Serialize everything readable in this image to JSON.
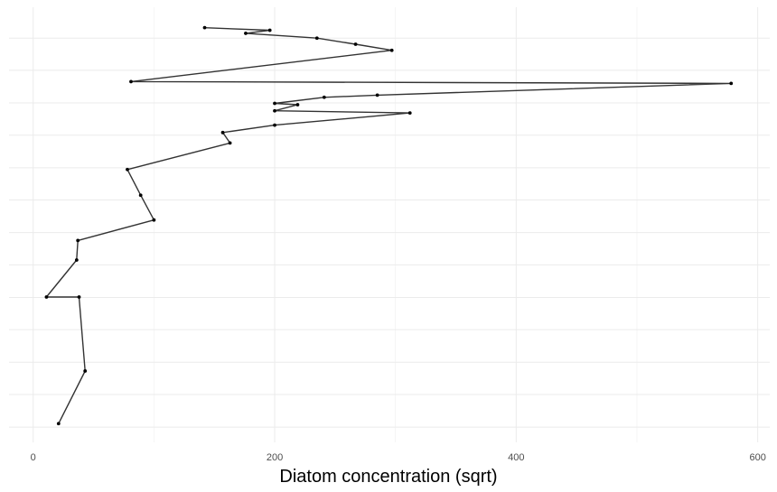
{
  "chart_data": {
    "type": "line",
    "title": "",
    "xlabel": "Diatom concentration (sqrt)",
    "ylabel": "",
    "xlim": [
      -20,
      610
    ],
    "ylim": [
      0,
      100
    ],
    "x_ticks": [
      0,
      200,
      400,
      600
    ],
    "x_tick_labels": [
      "0",
      "200",
      "400",
      "600"
    ],
    "y_grid": [
      3.5,
      11.0,
      18.4,
      25.9,
      33.3,
      40.8,
      48.2,
      55.7,
      63.1,
      70.6,
      78.0,
      85.5,
      92.9
    ],
    "grid": true,
    "y_axis_labels_shown": false,
    "line_color": "#333333",
    "point_color": "#000000",
    "series": [
      {
        "x": [
          142,
          196,
          176,
          235,
          267,
          297,
          81,
          578,
          285,
          241,
          200,
          219,
          200,
          312,
          200,
          157,
          163,
          78,
          89,
          100,
          37,
          36,
          11,
          38,
          43,
          21
        ],
        "y": [
          95.3,
          94.7,
          94.0,
          92.9,
          91.5,
          90.1,
          82.9,
          82.5,
          79.8,
          79.3,
          77.9,
          77.6,
          76.2,
          75.7,
          72.9,
          71.2,
          68.8,
          62.7,
          56.8,
          51.1,
          46.4,
          41.9,
          33.4,
          33.4,
          16.4,
          4.3
        ]
      }
    ]
  }
}
